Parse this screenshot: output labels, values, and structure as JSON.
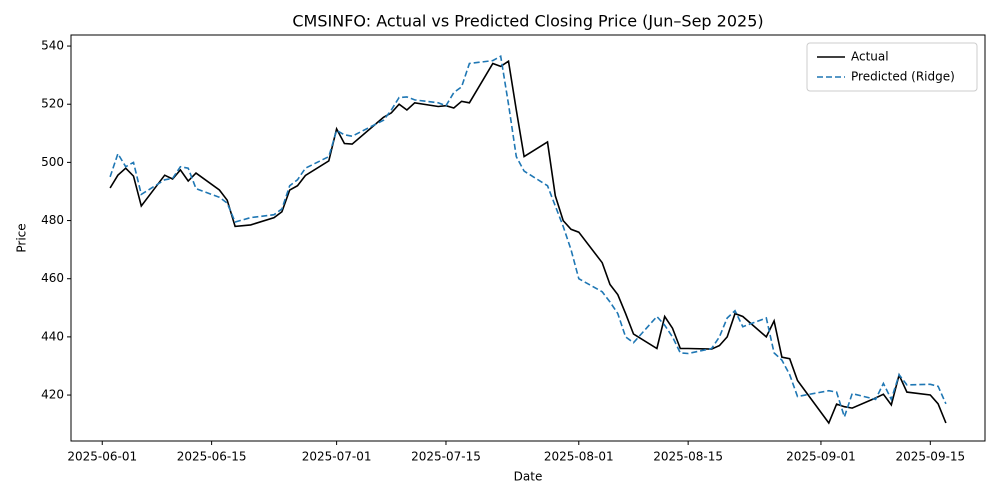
{
  "chart_data": {
    "type": "line",
    "title": "CMSINFO: Actual vs Predicted Closing Price (Jun–Sep 2025)",
    "xlabel": "Date",
    "ylabel": "Price",
    "x": [
      "2025-06-02",
      "2025-06-03",
      "2025-06-04",
      "2025-06-05",
      "2025-06-06",
      "2025-06-09",
      "2025-06-10",
      "2025-06-11",
      "2025-06-12",
      "2025-06-13",
      "2025-06-16",
      "2025-06-17",
      "2025-06-18",
      "2025-06-20",
      "2025-06-23",
      "2025-06-24",
      "2025-06-25",
      "2025-06-26",
      "2025-06-27",
      "2025-06-30",
      "2025-07-01",
      "2025-07-02",
      "2025-07-03",
      "2025-07-07",
      "2025-07-08",
      "2025-07-09",
      "2025-07-10",
      "2025-07-11",
      "2025-07-14",
      "2025-07-15",
      "2025-07-16",
      "2025-07-17",
      "2025-07-18",
      "2025-07-21",
      "2025-07-22",
      "2025-07-23",
      "2025-07-24",
      "2025-07-25",
      "2025-07-28",
      "2025-07-29",
      "2025-07-30",
      "2025-07-31",
      "2025-08-01",
      "2025-08-04",
      "2025-08-05",
      "2025-08-06",
      "2025-08-07",
      "2025-08-08",
      "2025-08-11",
      "2025-08-12",
      "2025-08-13",
      "2025-08-14",
      "2025-08-15",
      "2025-08-18",
      "2025-08-19",
      "2025-08-20",
      "2025-08-21",
      "2025-08-22",
      "2025-08-25",
      "2025-08-26",
      "2025-08-27",
      "2025-08-28",
      "2025-08-29",
      "2025-09-02",
      "2025-09-03",
      "2025-09-04",
      "2025-09-05",
      "2025-09-08",
      "2025-09-09",
      "2025-09-10",
      "2025-09-11",
      "2025-09-12",
      "2025-09-15",
      "2025-09-16",
      "2025-09-17"
    ],
    "series": [
      {
        "name": "Actual",
        "color": "#000000",
        "dash": "solid",
        "values": [
          491.2,
          495.6,
          498,
          495.3,
          485,
          495.6,
          494.3,
          497.4,
          493.6,
          496.3,
          490.5,
          487,
          478,
          478.5,
          481,
          483,
          490.5,
          492,
          495.5,
          500.5,
          511.5,
          506.5,
          506.3,
          515.5,
          517,
          520,
          518,
          520.5,
          519.2,
          519.5,
          518.7,
          521,
          520.5,
          534,
          533,
          534.8,
          518,
          502,
          507,
          488.5,
          480,
          477,
          476,
          465.5,
          458,
          454.5,
          448,
          441,
          436,
          447,
          443,
          436,
          436,
          435.8,
          437,
          440,
          448,
          447,
          440,
          445.5,
          433,
          432.5,
          425,
          410.4,
          416.9,
          416,
          415.5,
          419,
          420.3,
          416.6,
          426.9,
          421,
          420,
          417,
          410.4
        ]
      },
      {
        "name": "Predicted (Ridge)",
        "color": "#1f77b4",
        "dash": "dashed",
        "values": [
          495,
          503,
          498.5,
          500,
          489,
          494,
          494.5,
          498.5,
          498,
          491,
          488,
          486,
          479.5,
          481,
          482,
          484,
          492,
          494,
          498,
          502,
          511,
          509.5,
          509,
          514.5,
          518,
          522.3,
          522.5,
          521.5,
          520.5,
          519.5,
          524,
          526,
          534,
          535,
          536.5,
          520,
          502,
          497,
          492,
          485,
          478,
          470,
          460,
          455.5,
          452,
          448,
          440,
          438,
          447,
          444,
          440,
          434.5,
          434.3,
          436,
          440,
          446.5,
          449,
          443.5,
          446.5,
          434.5,
          432,
          427,
          419.5,
          421.5,
          421,
          412.5,
          420.5,
          418.5,
          424,
          418.5,
          427,
          423.5,
          423.7,
          423,
          417
        ]
      }
    ],
    "xlim": [
      "2025-05-28",
      "2025-09-22"
    ],
    "xticks": [
      "2025-06-01",
      "2025-06-15",
      "2025-07-01",
      "2025-07-15",
      "2025-08-01",
      "2025-08-15",
      "2025-09-01",
      "2025-09-15"
    ],
    "ylim": [
      404.2,
      543.8
    ],
    "yticks": [
      420,
      440,
      460,
      480,
      500,
      520,
      540
    ],
    "grid": false,
    "legend": "upper right"
  }
}
